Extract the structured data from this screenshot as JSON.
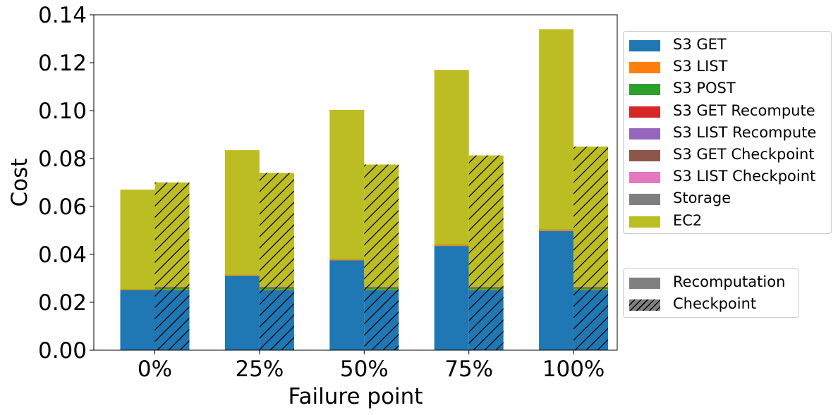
{
  "chart_data": {
    "type": "bar",
    "xlabel": "Failure point",
    "ylabel": "Cost",
    "categories": [
      "0%",
      "25%",
      "50%",
      "75%",
      "100%"
    ],
    "ylim": [
      0,
      0.14
    ],
    "yticks": [
      "0.00",
      "0.02",
      "0.04",
      "0.06",
      "0.08",
      "0.10",
      "0.12",
      "0.14"
    ],
    "stacked": true,
    "grid": false,
    "series": [
      {
        "name": "S3 GET",
        "color": "#1f77b4",
        "recomputation": [
          0.025,
          0.031,
          0.0375,
          0.0435,
          0.0498
        ],
        "checkpoint": [
          0.025,
          0.025,
          0.025,
          0.025,
          0.025
        ]
      },
      {
        "name": "S3 LIST",
        "color": "#ff7f0e",
        "recomputation": [
          0.0003,
          0.0004,
          0.0004,
          0.0005,
          0.0006
        ],
        "checkpoint": [
          0.0003,
          0.0003,
          0.0003,
          0.0003,
          0.0003
        ]
      },
      {
        "name": "S3 POST",
        "color": "#2ca02c",
        "recomputation": [
          0.0001,
          0.0001,
          0.0001,
          0.0001,
          0.0001
        ],
        "checkpoint": [
          0.0007,
          0.0007,
          0.0007,
          0.0007,
          0.0007
        ]
      },
      {
        "name": "S3 GET Recompute",
        "color": "#d62728",
        "recomputation": [
          0,
          0,
          0,
          0,
          0
        ],
        "checkpoint": [
          0,
          0,
          0,
          0,
          0
        ]
      },
      {
        "name": "S3 LIST Recompute",
        "color": "#9467bd",
        "recomputation": [
          0,
          0,
          0,
          0,
          0
        ],
        "checkpoint": [
          0,
          0,
          0,
          0,
          0
        ]
      },
      {
        "name": "S3 GET Checkpoint",
        "color": "#8c564b",
        "recomputation": [
          0,
          0,
          0,
          0,
          0
        ],
        "checkpoint": [
          0.0003,
          0.0003,
          0.0003,
          0.0003,
          0.0003
        ]
      },
      {
        "name": "S3 LIST Checkpoint",
        "color": "#e377c2",
        "recomputation": [
          0,
          0,
          0,
          0,
          0
        ],
        "checkpoint": [
          0,
          0,
          0,
          0,
          0
        ]
      },
      {
        "name": "Storage",
        "color": "#7f7f7f",
        "recomputation": [
          0,
          0,
          0,
          0,
          0
        ],
        "checkpoint": [
          0.0002,
          0.0002,
          0.0002,
          0.0002,
          0.0002
        ]
      },
      {
        "name": "EC2",
        "color": "#bcbd22",
        "recomputation": [
          0.0416,
          0.052,
          0.0623,
          0.0729,
          0.0835
        ],
        "checkpoint": [
          0.0435,
          0.0475,
          0.051,
          0.0548,
          0.0585
        ]
      }
    ],
    "bar_groups": [
      {
        "name": "Recomputation",
        "hatch": false
      },
      {
        "name": "Checkpoint",
        "hatch": true
      }
    ],
    "legend_position": "right"
  }
}
